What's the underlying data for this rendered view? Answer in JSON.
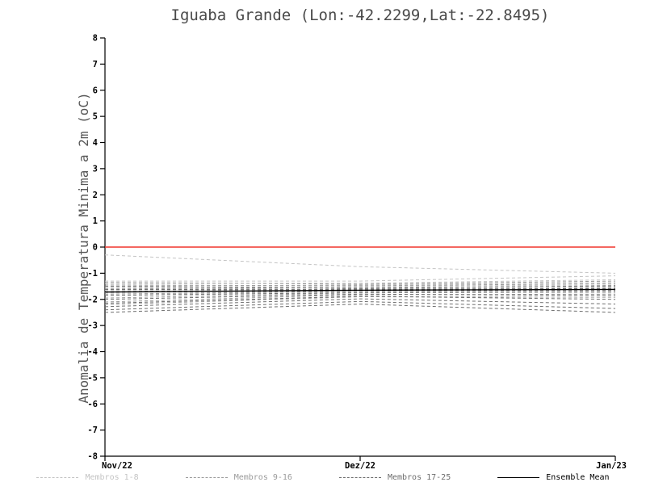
{
  "chart": {
    "title": "Iguaba Grande (Lon:-42.2299,Lat:-22.8495)",
    "ylabel": "Anomalia de Temperatura Minima a 2m (oC)"
  },
  "chart_data": {
    "type": "line",
    "title": "Iguaba Grande (Lon:-42.2299,Lat:-22.8495)",
    "xlabel": "",
    "ylabel": "Anomalia de Temperatura Minima a 2m (oC)",
    "ylim": [
      -8,
      8
    ],
    "ytick_step": 1,
    "x": [
      0,
      0.5,
      1
    ],
    "x_labels": [
      "Nov/22",
      "Dez/22",
      "Jan/23"
    ],
    "grid": false,
    "legend_position": "bottom",
    "zero_line": {
      "value": 0,
      "color": "#f0352c"
    },
    "series_groups": [
      {
        "name": "Membros 1-8",
        "color": "#c4c4c4",
        "style": "dashed",
        "members": [
          [
            -0.3,
            -0.75,
            -1.0
          ],
          [
            -1.3,
            -1.3,
            -1.1
          ],
          [
            -1.4,
            -1.38,
            -1.25
          ],
          [
            -1.5,
            -1.45,
            -1.35
          ],
          [
            -1.55,
            -1.5,
            -1.45
          ],
          [
            -1.65,
            -1.55,
            -1.5
          ],
          [
            -1.75,
            -1.62,
            -1.55
          ],
          [
            -1.85,
            -1.68,
            -1.62
          ]
        ]
      },
      {
        "name": "Membros 9-16",
        "color": "#9b9b9b",
        "style": "dashed",
        "members": [
          [
            -1.35,
            -1.42,
            -1.3
          ],
          [
            -1.45,
            -1.48,
            -1.4
          ],
          [
            -1.6,
            -1.55,
            -1.5
          ],
          [
            -1.7,
            -1.6,
            -1.58
          ],
          [
            -1.8,
            -1.68,
            -1.65
          ],
          [
            -1.95,
            -1.75,
            -1.72
          ],
          [
            -2.1,
            -1.82,
            -1.8
          ],
          [
            -2.2,
            -1.9,
            -1.92
          ]
        ]
      },
      {
        "name": "Membros 17-25",
        "color": "#6e6e6e",
        "style": "dashed",
        "members": [
          [
            -1.5,
            -1.58,
            -1.48
          ],
          [
            -1.62,
            -1.63,
            -1.58
          ],
          [
            -1.72,
            -1.68,
            -1.66
          ],
          [
            -1.85,
            -1.74,
            -1.72
          ],
          [
            -2.0,
            -1.8,
            -1.85
          ],
          [
            -2.15,
            -1.88,
            -2.0
          ],
          [
            -2.28,
            -1.98,
            -2.18
          ],
          [
            -2.4,
            -2.08,
            -2.35
          ],
          [
            -2.5,
            -2.18,
            -2.5
          ]
        ]
      }
    ],
    "ensemble_mean": {
      "name": "Ensemble Mean",
      "color": "#000000",
      "style": "solid",
      "values": [
        -1.72,
        -1.65,
        -1.62
      ]
    }
  },
  "legend": {
    "items": [
      {
        "label": "Membros 1-8",
        "color": "#c4c4c4",
        "dash": "dashed"
      },
      {
        "label": "Membros 9-16",
        "color": "#9b9b9b",
        "dash": "dashed"
      },
      {
        "label": "Membros 17-25",
        "color": "#6e6e6e",
        "dash": "dashed"
      },
      {
        "label": "Ensemble Mean",
        "color": "#000000",
        "dash": "solid"
      }
    ]
  }
}
